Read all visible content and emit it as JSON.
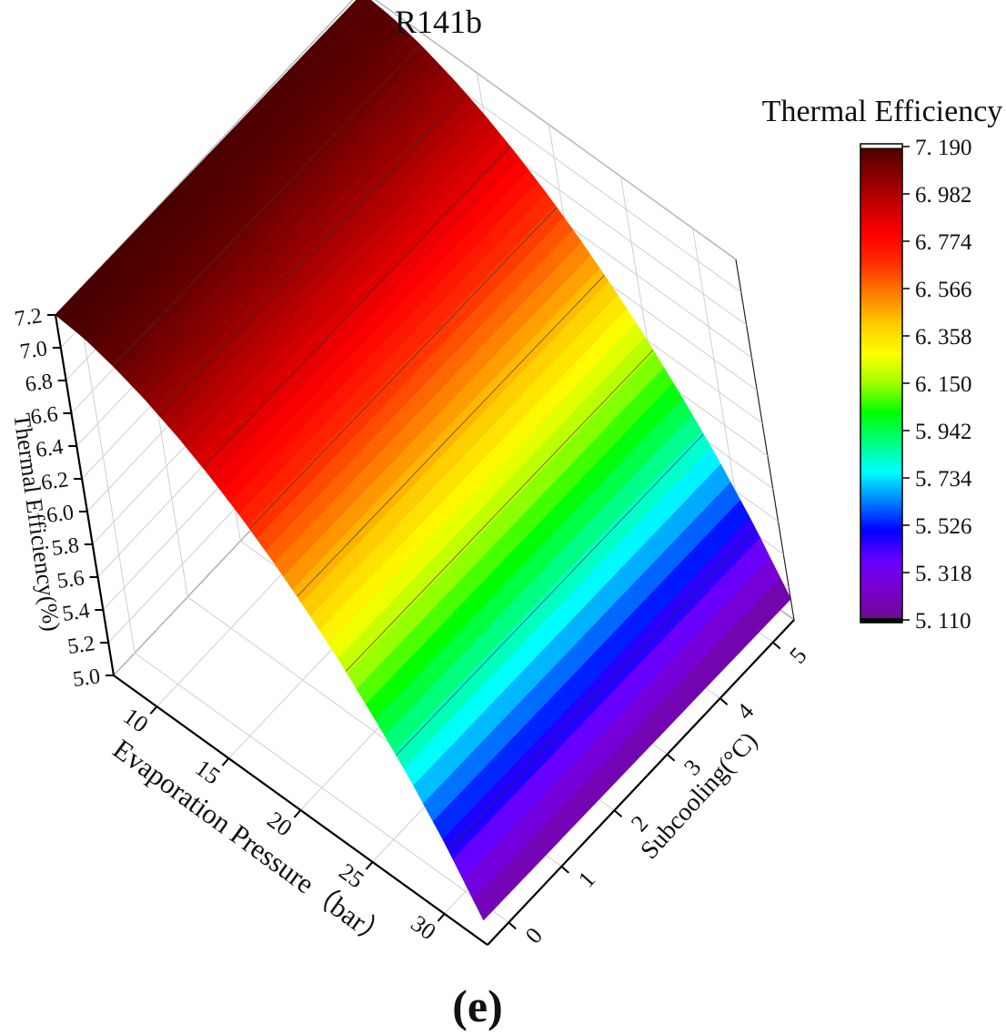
{
  "chart_data": {
    "type": "surface",
    "title": "R141b",
    "panel_label": "(e)",
    "x_axis": {
      "label": "Evaporation Pressure（bar）",
      "ticks": [
        "10",
        "15",
        "20",
        "25",
        "30"
      ],
      "range": [
        7,
        33
      ]
    },
    "y_axis": {
      "label": "Subcooling(°C)",
      "ticks": [
        "0",
        "1",
        "2",
        "3",
        "4",
        "5"
      ],
      "range": [
        -0.4,
        5.4
      ]
    },
    "z_axis": {
      "label": "Thermal Efficiency(%)",
      "ticks": [
        "5.0",
        "5.2",
        "5.4",
        "5.6",
        "5.8",
        "6.0",
        "6.2",
        "6.4",
        "6.6",
        "6.8",
        "7.0",
        "7.2"
      ],
      "range": [
        5.0,
        7.2
      ]
    },
    "surface_model": {
      "description": "Thermal efficiency decreases with evaporation pressure (concave), nearly independent of subcooling",
      "pressure_samples": [
        7,
        9,
        11,
        13,
        15,
        17,
        19,
        21,
        23,
        25,
        27,
        29,
        31,
        33
      ],
      "efficiency_values": [
        7.19,
        7.17,
        7.12,
        7.05,
        6.96,
        6.85,
        6.72,
        6.57,
        6.4,
        6.21,
        5.99,
        5.75,
        5.47,
        5.14
      ],
      "subcooling_effect_per_degC": -0.004
    },
    "colorbar": {
      "title": "Thermal Efficiency",
      "min": 5.11,
      "max": 7.19,
      "tick_labels": [
        "7. 190",
        "6. 982",
        "6. 774",
        "6. 566",
        "6. 358",
        "6. 150",
        "5. 942",
        "5. 734",
        "5. 526",
        "5. 318",
        "5. 110"
      ],
      "colors": [
        "#4b0000",
        "#8b0000",
        "#c80000",
        "#ff0000",
        "#ff3300",
        "#ff8000",
        "#ffcc00",
        "#ffff00",
        "#a0ff00",
        "#00ff00",
        "#00ff80",
        "#00ffff",
        "#0080ff",
        "#0000ff",
        "#6600ff",
        "#7a00cc",
        "#6a0a90"
      ]
    }
  }
}
